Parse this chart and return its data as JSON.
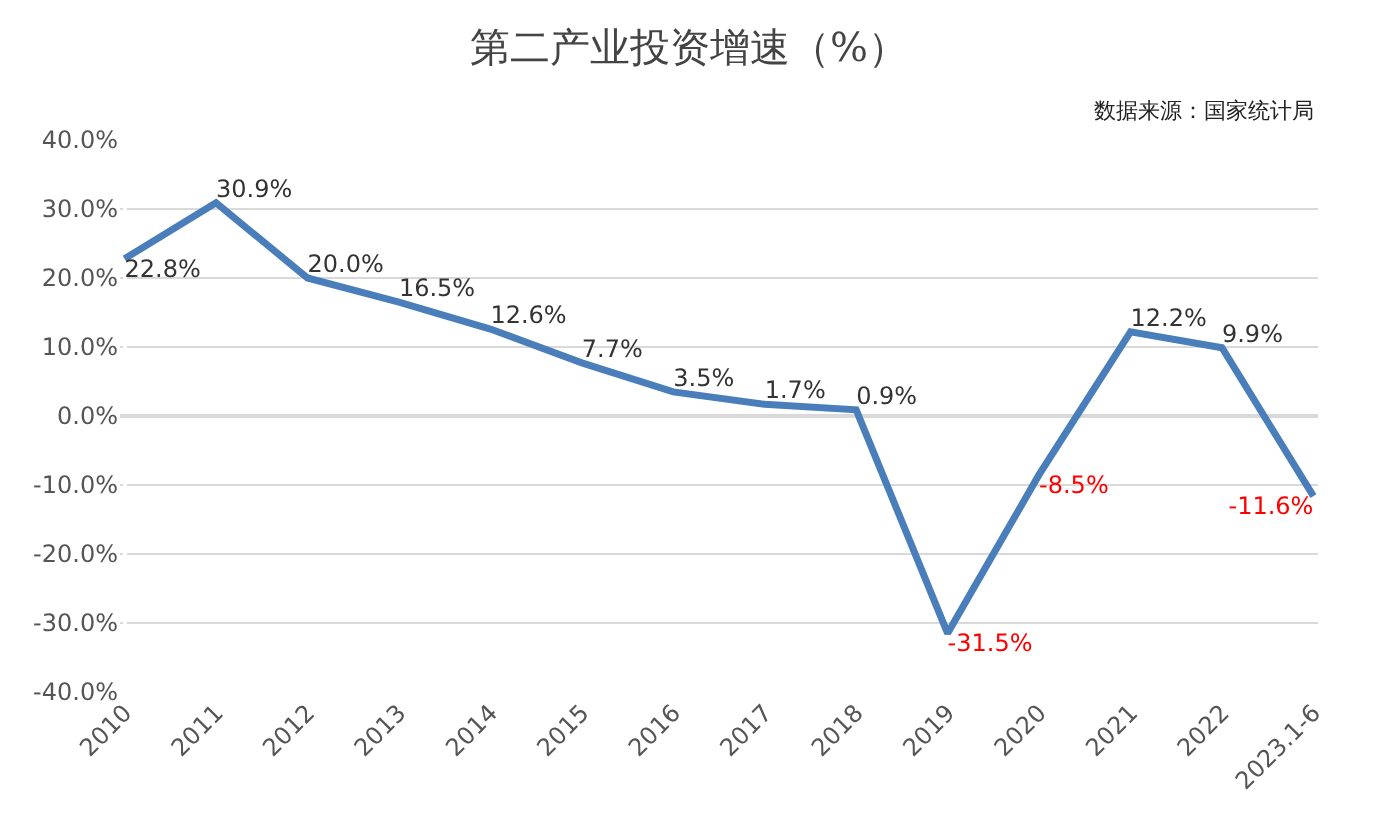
{
  "chart_data": {
    "type": "line",
    "title": "第二产业投资增速（%）",
    "annotations": [
      "数据来源：国家统计局"
    ],
    "categories": [
      "2010",
      "2011",
      "2012",
      "2013",
      "2014",
      "2015",
      "2016",
      "2017",
      "2018",
      "2019",
      "2020",
      "2021",
      "2022",
      "2023.1-6"
    ],
    "series": [
      {
        "color": "#4a7ebb",
        "values": [
          22.8,
          30.9,
          20.0,
          16.5,
          12.6,
          7.7,
          3.5,
          1.7,
          0.9,
          -31.5,
          -8.5,
          12.2,
          9.9,
          -11.6
        ],
        "value_labels": [
          "22.8%",
          "30.9%",
          "20.0%",
          "16.5%",
          "12.6%",
          "7.7%",
          "3.5%",
          "1.7%",
          "0.9%",
          "-31.5%",
          "-8.5%",
          "12.2%",
          "9.9%",
          "-11.6%"
        ]
      }
    ],
    "ylim": [
      -40,
      40
    ],
    "yticks": [
      {
        "value": -40,
        "label": "-40.0%"
      },
      {
        "value": -30,
        "label": "-30.0%"
      },
      {
        "value": -20,
        "label": "-20.0%"
      },
      {
        "value": -10,
        "label": "-10.0%"
      },
      {
        "value": 0,
        "label": "0.0%"
      },
      {
        "value": 10,
        "label": "10.0%"
      },
      {
        "value": 20,
        "label": "20.0%"
      },
      {
        "value": 30,
        "label": "30.0%"
      },
      {
        "value": 40,
        "label": "40.0%"
      }
    ],
    "grid": "y",
    "marker": "none",
    "line_style": "solid"
  }
}
